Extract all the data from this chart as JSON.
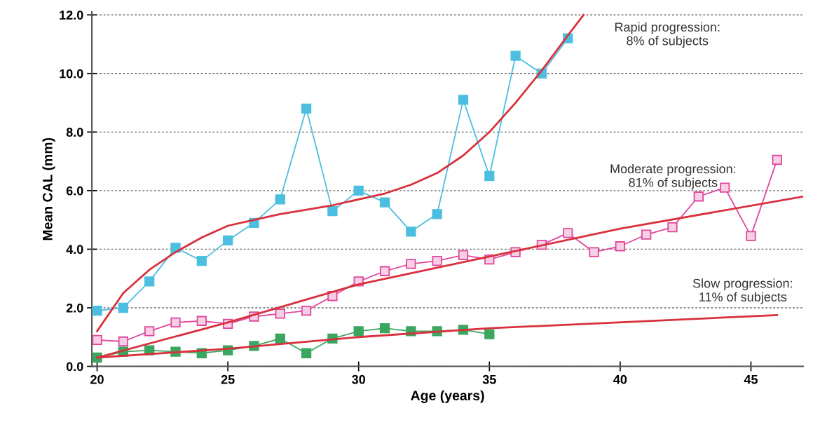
{
  "chart_data": {
    "type": "line",
    "xlabel": "Age (years)",
    "ylabel": "Mean CAL (mm)",
    "xlim": [
      19.8,
      47
    ],
    "xticks": [
      20,
      25,
      30,
      35,
      40,
      45
    ],
    "ylim": [
      0,
      12.1
    ],
    "yticks": [
      {
        "value": 0,
        "label": "0.0"
      },
      {
        "value": 2,
        "label": "2.0"
      },
      {
        "value": 4,
        "label": "4.0"
      },
      {
        "value": 6,
        "label": "6.0"
      },
      {
        "value": 8,
        "label": "8.0"
      },
      {
        "value": 10,
        "label": "10.0"
      },
      {
        "value": 12,
        "label": "12.0"
      }
    ],
    "grid": "y",
    "marker": "square",
    "line_style": "solid",
    "legend": false,
    "series": [
      {
        "color": "#4cbfe0",
        "x": [
          20,
          21,
          22,
          23,
          24,
          25,
          26,
          27,
          28,
          29,
          30,
          31,
          32,
          33,
          34,
          35,
          36,
          37,
          38
        ],
        "values": [
          1.9,
          2.0,
          2.9,
          4.05,
          3.6,
          4.3,
          4.9,
          5.7,
          8.8,
          5.3,
          6.0,
          5.6,
          4.6,
          5.2,
          9.1,
          6.5,
          10.6,
          10.0,
          11.2
        ]
      },
      {
        "color": "#e0489c",
        "x": [
          20,
          21,
          22,
          23,
          24,
          25,
          26,
          27,
          28,
          29,
          30,
          31,
          32,
          33,
          34,
          35,
          36,
          37,
          38,
          39,
          40,
          41,
          42,
          43,
          44,
          45,
          46
        ],
        "values": [
          0.9,
          0.85,
          1.2,
          1.5,
          1.55,
          1.45,
          1.7,
          1.8,
          1.9,
          2.4,
          2.9,
          3.25,
          3.5,
          3.6,
          3.8,
          3.65,
          3.9,
          4.15,
          4.55,
          3.9,
          4.1,
          4.5,
          4.75,
          5.8,
          6.1,
          4.45,
          7.05
        ]
      },
      {
        "color": "#3aa65f",
        "x": [
          20,
          21,
          22,
          23,
          24,
          25,
          26,
          27,
          28,
          29,
          30,
          31,
          32,
          33,
          34,
          35
        ],
        "values": [
          0.3,
          0.5,
          0.55,
          0.5,
          0.45,
          0.55,
          0.7,
          0.95,
          0.45,
          0.95,
          1.2,
          1.3,
          1.2,
          1.2,
          1.25,
          1.1
        ]
      },
      {
        "color": "#d8303c",
        "marker": "none",
        "x": [
          20,
          21,
          22,
          23,
          24,
          25,
          26,
          27,
          28,
          29,
          30,
          31,
          32,
          33,
          34,
          35,
          36,
          37,
          38,
          38.6
        ],
        "values": [
          1.2,
          2.5,
          3.3,
          3.9,
          4.4,
          4.8,
          5.0,
          5.2,
          5.35,
          5.5,
          5.7,
          5.9,
          6.2,
          6.6,
          7.2,
          8.0,
          9.0,
          10.1,
          11.3,
          12.0
        ]
      },
      {
        "color": "#d8303c",
        "marker": "none",
        "x": [
          20,
          25,
          30,
          35,
          40,
          47
        ],
        "values": [
          0.3,
          1.5,
          2.8,
          3.75,
          4.7,
          5.8
        ]
      },
      {
        "color": "#d8303c",
        "marker": "none",
        "x": [
          20,
          25,
          30,
          35,
          46
        ],
        "values": [
          0.3,
          0.6,
          1.0,
          1.3,
          1.75
        ]
      }
    ],
    "annotations": [
      "Rapid progression:\n8% of subjects",
      "Moderate progression:\n81% of subjects",
      "Slow progression:\n11% of subjects"
    ]
  }
}
